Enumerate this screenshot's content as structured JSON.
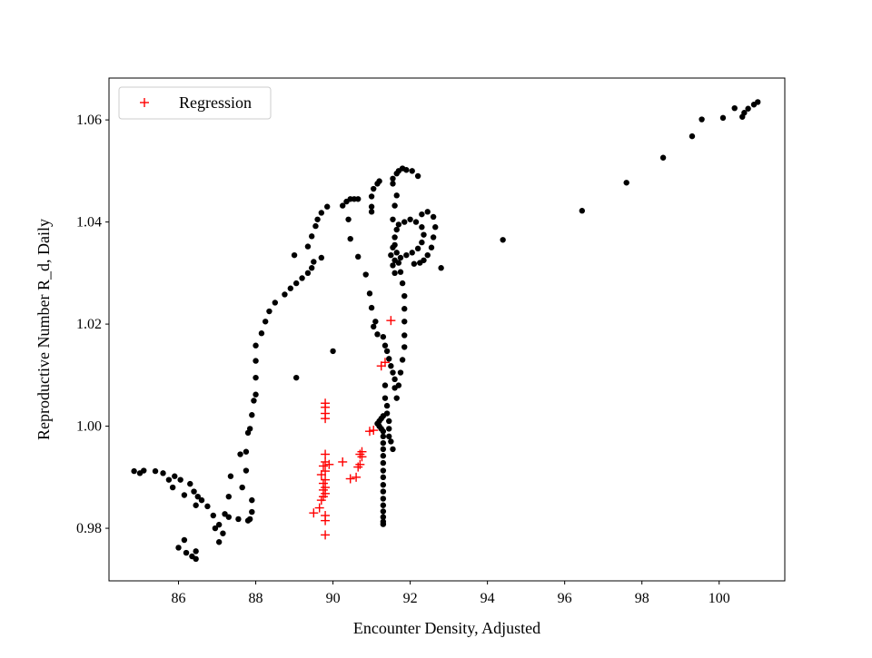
{
  "chart_data": {
    "type": "scatter",
    "xlabel": "Encounter Density, Adjusted",
    "ylabel": "Reproductive Number R_d, Daily",
    "xlim": [
      84.2,
      101.7
    ],
    "ylim": [
      0.9697,
      1.0682
    ],
    "xticks": [
      86,
      88,
      90,
      92,
      94,
      96,
      98,
      100
    ],
    "yticks": [
      0.98,
      1.0,
      1.02,
      1.04,
      1.06
    ],
    "xtick_labels": [
      "86",
      "88",
      "90",
      "92",
      "94",
      "96",
      "98",
      "100"
    ],
    "ytick_labels": [
      "0.98",
      "1.00",
      "1.02",
      "1.04",
      "1.06"
    ],
    "grid": false,
    "legend_position": "upper-left",
    "series": [
      {
        "name": "",
        "marker": "dot",
        "color": "#000000",
        "points": [
          [
            84.85,
            0.9912
          ],
          [
            85.0,
            0.9908
          ],
          [
            85.1,
            0.9913
          ],
          [
            85.4,
            0.9912
          ],
          [
            85.6,
            0.9908
          ],
          [
            85.75,
            0.9895
          ],
          [
            85.9,
            0.9902
          ],
          [
            86.05,
            0.9895
          ],
          [
            85.85,
            0.988
          ],
          [
            86.15,
            0.9865
          ],
          [
            86.3,
            0.9887
          ],
          [
            86.4,
            0.9872
          ],
          [
            86.5,
            0.9862
          ],
          [
            86.6,
            0.9855
          ],
          [
            86.45,
            0.9845
          ],
          [
            86.75,
            0.9843
          ],
          [
            86.9,
            0.9825
          ],
          [
            86.95,
            0.98
          ],
          [
            87.05,
            0.9807
          ],
          [
            87.15,
            0.979
          ],
          [
            87.05,
            0.9773
          ],
          [
            87.2,
            0.9828
          ],
          [
            87.3,
            0.9822
          ],
          [
            87.3,
            0.9862
          ],
          [
            87.35,
            0.9902
          ],
          [
            87.55,
            0.9818
          ],
          [
            87.6,
            0.9945
          ],
          [
            87.65,
            0.988
          ],
          [
            87.75,
            0.995
          ],
          [
            87.75,
            0.9913
          ],
          [
            87.8,
            0.9987
          ],
          [
            87.85,
            0.9995
          ],
          [
            87.8,
            0.9815
          ],
          [
            87.85,
            0.9818
          ],
          [
            87.9,
            0.9832
          ],
          [
            87.9,
            0.9855
          ],
          [
            87.9,
            1.0022
          ],
          [
            87.95,
            1.005
          ],
          [
            88.0,
            1.0062
          ],
          [
            88.0,
            1.0095
          ],
          [
            88.0,
            1.0128
          ],
          [
            88.0,
            1.0158
          ],
          [
            88.15,
            1.0182
          ],
          [
            88.25,
            1.0205
          ],
          [
            88.35,
            1.0225
          ],
          [
            88.5,
            1.0242
          ],
          [
            88.75,
            1.0258
          ],
          [
            88.9,
            1.027
          ],
          [
            89.05,
            1.028
          ],
          [
            89.2,
            1.029
          ],
          [
            89.35,
            1.03
          ],
          [
            89.45,
            1.031
          ],
          [
            89.5,
            1.0322
          ],
          [
            89.7,
            1.033
          ],
          [
            89.35,
            1.0352
          ],
          [
            89.45,
            1.0372
          ],
          [
            89.55,
            1.0392
          ],
          [
            89.6,
            1.0405
          ],
          [
            89.7,
            1.0418
          ],
          [
            89.85,
            1.043
          ],
          [
            89.0,
            1.0335
          ],
          [
            89.05,
            1.0095
          ],
          [
            90.0,
            1.0147
          ],
          [
            90.25,
            1.0432
          ],
          [
            90.35,
            1.044
          ],
          [
            90.45,
            1.0445
          ],
          [
            90.55,
            1.0445
          ],
          [
            90.65,
            1.0445
          ],
          [
            90.4,
            1.0405
          ],
          [
            90.45,
            1.0367
          ],
          [
            90.65,
            1.0332
          ],
          [
            90.85,
            1.0297
          ],
          [
            90.95,
            1.026
          ],
          [
            91.0,
            1.0232
          ],
          [
            91.1,
            1.0205
          ],
          [
            91.05,
            1.0195
          ],
          [
            91.15,
            1.018
          ],
          [
            91.3,
            1.0175
          ],
          [
            91.35,
            1.0158
          ],
          [
            91.4,
            1.0147
          ],
          [
            91.45,
            1.0132
          ],
          [
            91.5,
            1.0118
          ],
          [
            91.55,
            1.0105
          ],
          [
            91.6,
            1.0092
          ],
          [
            91.6,
            1.0075
          ],
          [
            91.35,
            1.008
          ],
          [
            91.35,
            1.0055
          ],
          [
            91.4,
            1.004
          ],
          [
            91.4,
            1.0025
          ],
          [
            91.45,
            1.001
          ],
          [
            91.45,
            0.9995
          ],
          [
            91.45,
            0.998
          ],
          [
            91.5,
            0.997
          ],
          [
            91.55,
            0.9955
          ],
          [
            91.15,
            1.0005
          ],
          [
            91.2,
            1.001
          ],
          [
            91.25,
            1.0015
          ],
          [
            91.3,
            1.002
          ],
          [
            91.2,
            1.0
          ],
          [
            91.25,
            0.9995
          ],
          [
            91.3,
            0.999
          ],
          [
            91.3,
            0.998
          ],
          [
            91.3,
            0.9967
          ],
          [
            91.3,
            0.9955
          ],
          [
            91.3,
            0.9942
          ],
          [
            91.3,
            0.9928
          ],
          [
            91.3,
            0.9913
          ],
          [
            91.3,
            0.99
          ],
          [
            91.3,
            0.9885
          ],
          [
            91.3,
            0.9872
          ],
          [
            91.3,
            0.9858
          ],
          [
            91.3,
            0.9845
          ],
          [
            91.3,
            0.9833
          ],
          [
            91.3,
            0.9822
          ],
          [
            91.3,
            0.9813
          ],
          [
            91.3,
            0.9808
          ],
          [
            91.65,
            1.0055
          ],
          [
            91.7,
            1.008
          ],
          [
            91.75,
            1.0105
          ],
          [
            91.8,
            1.013
          ],
          [
            91.85,
            1.0155
          ],
          [
            91.85,
            1.0178
          ],
          [
            91.85,
            1.0205
          ],
          [
            91.85,
            1.023
          ],
          [
            91.85,
            1.0255
          ],
          [
            91.8,
            1.028
          ],
          [
            91.75,
            1.0302
          ],
          [
            91.7,
            1.032
          ],
          [
            91.65,
            1.034
          ],
          [
            91.6,
            1.0355
          ],
          [
            91.6,
            1.037
          ],
          [
            91.65,
            1.0385
          ],
          [
            91.7,
            1.0395
          ],
          [
            91.85,
            1.04
          ],
          [
            92.0,
            1.0405
          ],
          [
            92.15,
            1.04
          ],
          [
            92.3,
            1.039
          ],
          [
            92.35,
            1.0375
          ],
          [
            92.3,
            1.036
          ],
          [
            92.2,
            1.0348
          ],
          [
            92.05,
            1.034
          ],
          [
            91.9,
            1.0335
          ],
          [
            91.75,
            1.033
          ],
          [
            91.6,
            1.0325
          ],
          [
            91.55,
            1.0315
          ],
          [
            91.6,
            1.03
          ],
          [
            91.5,
            1.0335
          ],
          [
            91.55,
            1.035
          ],
          [
            91.55,
            1.0405
          ],
          [
            91.6,
            1.0432
          ],
          [
            91.65,
            1.0452
          ],
          [
            91.55,
            1.0475
          ],
          [
            91.55,
            1.0485
          ],
          [
            91.65,
            1.0495
          ],
          [
            91.7,
            1.05
          ],
          [
            91.8,
            1.0505
          ],
          [
            91.9,
            1.0502
          ],
          [
            92.05,
            1.05
          ],
          [
            92.2,
            1.049
          ],
          [
            92.1,
            1.0318
          ],
          [
            92.25,
            1.032
          ],
          [
            92.35,
            1.0325
          ],
          [
            92.45,
            1.0335
          ],
          [
            92.55,
            1.035
          ],
          [
            92.6,
            1.037
          ],
          [
            92.65,
            1.039
          ],
          [
            92.6,
            1.041
          ],
          [
            92.45,
            1.042
          ],
          [
            92.3,
            1.0415
          ],
          [
            92.8,
            1.031
          ],
          [
            91.0,
            1.045
          ],
          [
            91.05,
            1.0465
          ],
          [
            91.15,
            1.0475
          ],
          [
            91.2,
            1.048
          ],
          [
            91.0,
            1.043
          ],
          [
            91.0,
            1.042
          ],
          [
            94.4,
            1.0365
          ],
          [
            96.45,
            1.0422
          ],
          [
            97.6,
            1.0477
          ],
          [
            98.55,
            1.0526
          ],
          [
            99.3,
            1.0568
          ],
          [
            99.55,
            1.0601
          ],
          [
            100.1,
            1.0604
          ],
          [
            100.4,
            1.0623
          ],
          [
            100.6,
            1.0606
          ],
          [
            100.65,
            1.0614
          ],
          [
            100.75,
            1.0622
          ],
          [
            100.9,
            1.063
          ],
          [
            101.0,
            1.0635
          ],
          [
            86.0,
            0.9762
          ],
          [
            86.2,
            0.9752
          ],
          [
            86.35,
            0.9745
          ],
          [
            86.45,
            0.974
          ],
          [
            86.45,
            0.9755
          ],
          [
            86.15,
            0.9777
          ]
        ]
      },
      {
        "name": "Regression",
        "marker": "plus",
        "color": "#ff0000",
        "points": [
          [
            89.5,
            0.983
          ],
          [
            89.65,
            0.984
          ],
          [
            89.7,
            0.9855
          ],
          [
            89.75,
            0.9862
          ],
          [
            89.8,
            0.9868
          ],
          [
            89.75,
            0.9875
          ],
          [
            89.8,
            0.988
          ],
          [
            89.75,
            0.9888
          ],
          [
            89.8,
            0.9895
          ],
          [
            89.7,
            0.9905
          ],
          [
            89.8,
            0.9912
          ],
          [
            89.75,
            0.9922
          ],
          [
            89.8,
            0.993
          ],
          [
            89.8,
            0.9945
          ],
          [
            89.8,
            0.9825
          ],
          [
            89.8,
            0.9815
          ],
          [
            89.8,
            0.9787
          ],
          [
            89.8,
            1.0015
          ],
          [
            89.8,
            1.0025
          ],
          [
            89.8,
            1.0037
          ],
          [
            89.8,
            1.0045
          ],
          [
            89.9,
            0.9925
          ],
          [
            90.25,
            0.993
          ],
          [
            90.45,
            0.9897
          ],
          [
            90.6,
            0.99
          ],
          [
            90.65,
            0.992
          ],
          [
            90.7,
            0.9945
          ],
          [
            90.75,
            0.994
          ],
          [
            90.7,
            0.9925
          ],
          [
            90.75,
            0.995
          ],
          [
            90.95,
            0.999
          ],
          [
            91.05,
            0.9992
          ],
          [
            91.25,
            1.0118
          ],
          [
            91.35,
            1.0125
          ],
          [
            91.5,
            1.0207
          ]
        ]
      }
    ]
  }
}
